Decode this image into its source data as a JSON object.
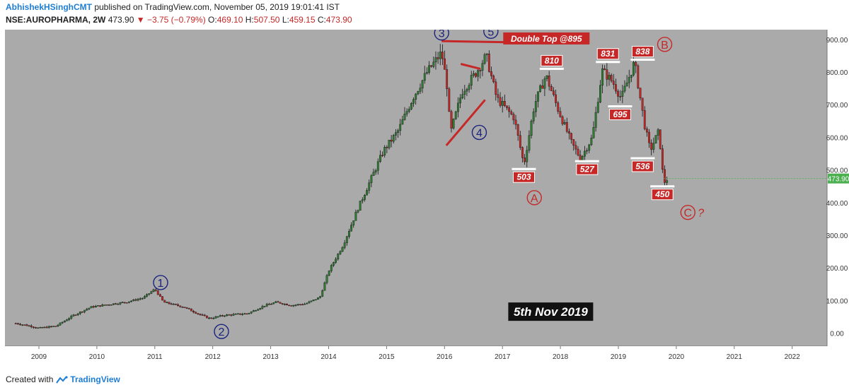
{
  "header": {
    "author": "AbhishekHSinghCMT",
    "published": " published on TradingView.com, November 05, 2019 19:01:41 IST",
    "symbol": "NSE:AUROPHARMA, 2W",
    "last": "473.90",
    "change": "−3.75 (−0.79%)",
    "o_label": "O:",
    "o_value": "469.10",
    "h_label": "H:",
    "h_value": "507.50",
    "l_label": "L:",
    "l_value": "459.15",
    "c_label": "C:",
    "c_value": "473.90"
  },
  "footer": {
    "created_with": "Created with",
    "brand": "TradingView"
  },
  "colors": {
    "background": "#aaaaaa",
    "up": "#2e7d32",
    "down": "#c62828",
    "wave_blue": "#1a237e",
    "wave_red": "#c62828",
    "last_price_tag": "#4caf50"
  },
  "chart_data": {
    "type": "candlestick",
    "timeframe": "2W",
    "x_ticks": [
      "2009",
      "2010",
      "2011",
      "2012",
      "2013",
      "2014",
      "2015",
      "2016",
      "2017",
      "2018",
      "2019",
      "2020",
      "2021",
      "2022"
    ],
    "y_ticks": [
      "0.00",
      "100.00",
      "200.00",
      "300.00",
      "400.00",
      "500.00",
      "600.00",
      "700.00",
      "800.00",
      "900.00"
    ],
    "ylim": [
      -40,
      930
    ],
    "last_price_label": "473.90",
    "price_path": [
      [
        2008.6,
        30
      ],
      [
        2008.85,
        22
      ],
      [
        2009.0,
        15
      ],
      [
        2009.3,
        22
      ],
      [
        2009.6,
        55
      ],
      [
        2009.9,
        80
      ],
      [
        2010.2,
        88
      ],
      [
        2010.5,
        95
      ],
      [
        2010.8,
        108
      ],
      [
        2011.0,
        135
      ],
      [
        2011.15,
        95
      ],
      [
        2011.5,
        80
      ],
      [
        2011.8,
        55
      ],
      [
        2011.95,
        45
      ],
      [
        2012.2,
        55
      ],
      [
        2012.6,
        60
      ],
      [
        2012.9,
        85
      ],
      [
        2013.1,
        95
      ],
      [
        2013.35,
        85
      ],
      [
        2013.6,
        90
      ],
      [
        2013.85,
        110
      ],
      [
        2014.0,
        190
      ],
      [
        2014.25,
        270
      ],
      [
        2014.5,
        380
      ],
      [
        2014.75,
        480
      ],
      [
        2014.95,
        560
      ],
      [
        2015.2,
        620
      ],
      [
        2015.45,
        720
      ],
      [
        2015.7,
        800
      ],
      [
        2015.95,
        860
      ],
      [
        2016.05,
        750
      ],
      [
        2016.1,
        610
      ],
      [
        2016.3,
        740
      ],
      [
        2016.55,
        800
      ],
      [
        2016.72,
        850
      ],
      [
        2016.9,
        720
      ],
      [
        2017.2,
        660
      ],
      [
        2017.37,
        515
      ],
      [
        2017.55,
        700
      ],
      [
        2017.75,
        790
      ],
      [
        2017.95,
        690
      ],
      [
        2018.2,
        580
      ],
      [
        2018.35,
        535
      ],
      [
        2018.55,
        600
      ],
      [
        2018.72,
        805
      ],
      [
        2018.9,
        770
      ],
      [
        2019.05,
        720
      ],
      [
        2019.28,
        830
      ],
      [
        2019.45,
        640
      ],
      [
        2019.55,
        560
      ],
      [
        2019.7,
        620
      ],
      [
        2019.78,
        460
      ],
      [
        2019.85,
        474
      ]
    ],
    "levels": [
      {
        "label": "810",
        "y": 810,
        "pos": "above"
      },
      {
        "label": "831",
        "y": 831,
        "pos": "above"
      },
      {
        "label": "838",
        "y": 838,
        "pos": "above"
      },
      {
        "label": "695",
        "y": 695,
        "pos": "below"
      },
      {
        "label": "503",
        "y": 503,
        "pos": "below"
      },
      {
        "label": "527",
        "y": 527,
        "pos": "below"
      },
      {
        "label": "536",
        "y": 536,
        "pos": "below"
      },
      {
        "label": "450",
        "y": 450,
        "pos": "below"
      }
    ],
    "wave_labels": [
      {
        "text": "1",
        "color": "blue",
        "x": 2011.1,
        "y": 155
      },
      {
        "text": "2",
        "color": "blue",
        "x": 2012.15,
        "y": 5
      },
      {
        "text": "3",
        "color": "blue",
        "x": 2015.95,
        "y": 920
      },
      {
        "text": "4",
        "color": "blue",
        "x": 2016.6,
        "y": 615
      },
      {
        "text": "5",
        "color": "blue",
        "x": 2016.8,
        "y": 925
      },
      {
        "text": "A",
        "color": "red",
        "x": 2017.55,
        "y": 415
      },
      {
        "text": "B",
        "color": "red",
        "x": 2019.8,
        "y": 885
      },
      {
        "text": "C",
        "color": "red",
        "x": 2020.2,
        "y": 370
      }
    ],
    "annotations": {
      "double_top": "Double Top @895",
      "c_question": "?",
      "date_note": "5th Nov 2019"
    }
  }
}
